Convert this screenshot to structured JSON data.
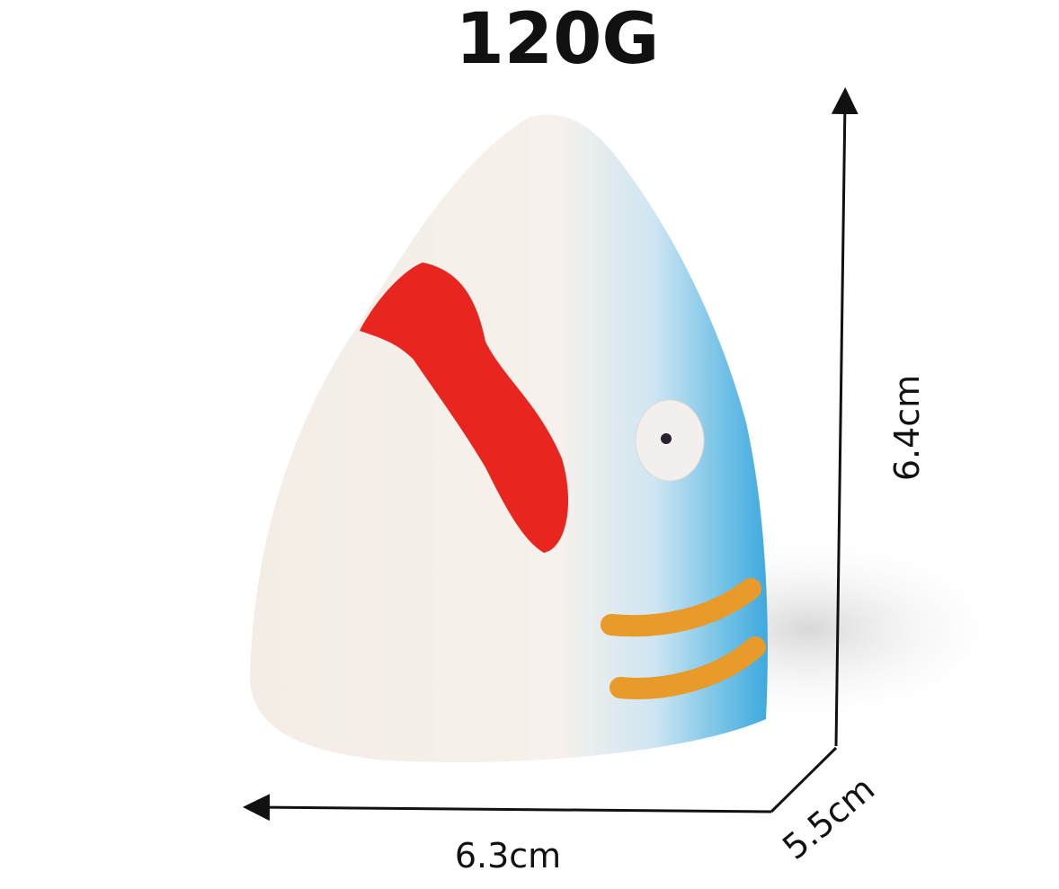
{
  "title": "120G",
  "dimensions": {
    "height": "6.4cm",
    "depth": "5.5cm",
    "width": "6.3cm"
  }
}
